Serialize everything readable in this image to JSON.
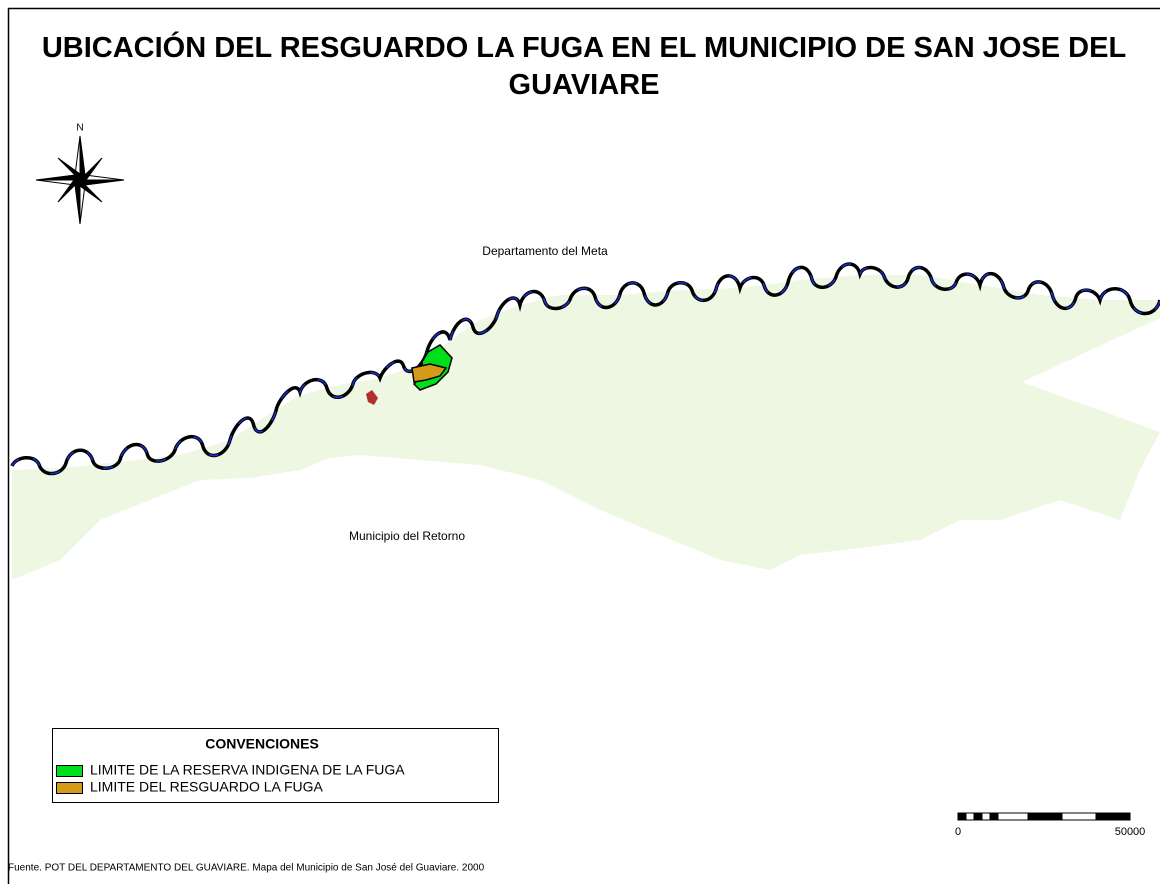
{
  "title": "UBICACIÓN DEL RESGUARDO LA FUGA EN EL MUNICIPIO DE SAN JOSE DEL GUAVIARE",
  "north": "N",
  "labels": [
    "Departamento del Meta",
    "Municipio del Retorno"
  ],
  "legend": {
    "title": "CONVENCIONES",
    "items": [
      {
        "name": "LIMITE DE LA RESERVA INDIGENA DE LA FUGA",
        "color": "#00e01a"
      },
      {
        "name": "LIMITE DEL RESGUARDO LA FUGA",
        "color": "#d49a1a"
      }
    ]
  },
  "scale_bar": {
    "labels": [
      0,
      50000
    ]
  },
  "source": "Fuente. POT DEL DEPARTAMENTO DEL GUAVIARE. Mapa del Municipio de San José del Guaviare. 2000"
}
